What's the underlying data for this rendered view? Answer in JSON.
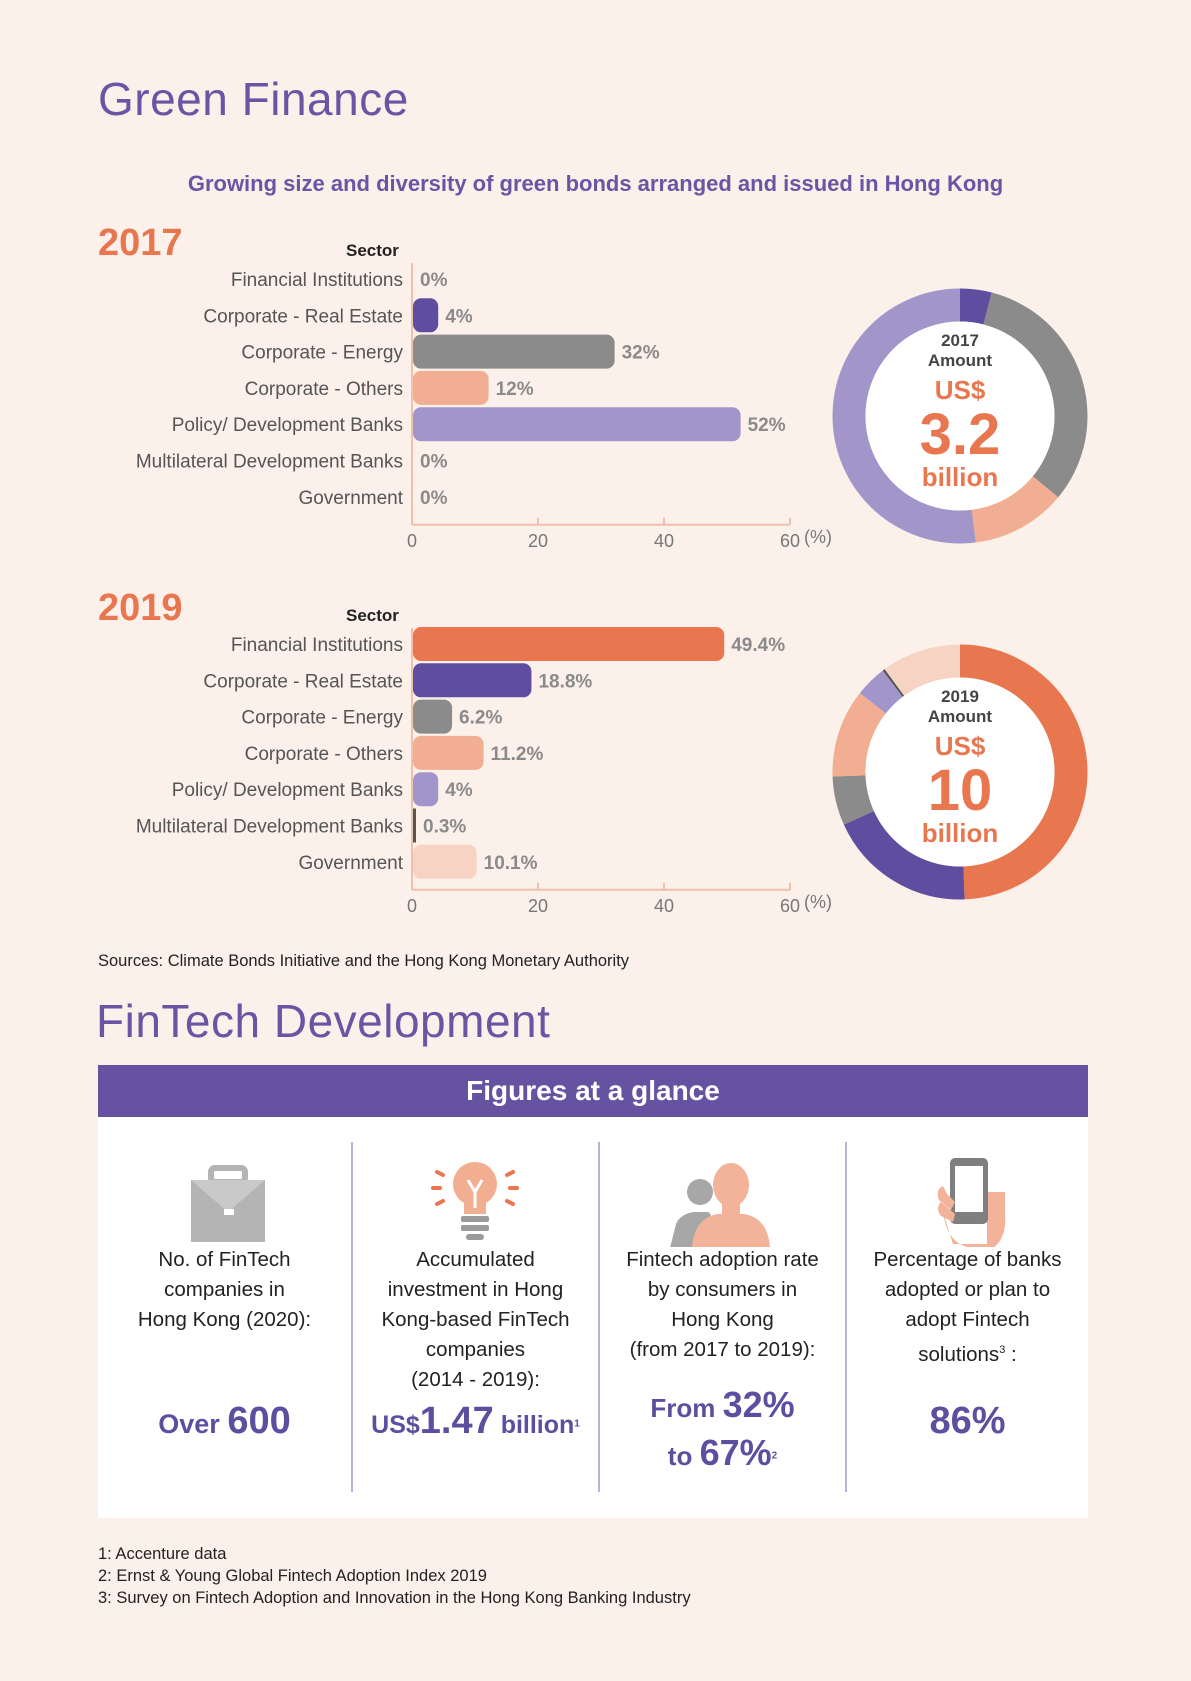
{
  "green": {
    "title": "Green Finance",
    "subtitle": "Growing size and diversity of green bonds arranged and issued in Hong Kong",
    "sources": "Sources: Climate Bonds Initiative and the Hong Kong Monetary Authority"
  },
  "colors": {
    "accent_orange": "#e8764f",
    "purple": "#6a55a4",
    "real_estate": "#5f4ea0",
    "energy": "#8b8b8b",
    "others": "#f1ae92",
    "policy": "#a295c9",
    "multilateral": "#555555",
    "government": "#f7d3c4",
    "axis": "#f0c0aa"
  },
  "chart_data": [
    {
      "type": "bar",
      "year_label": "2017",
      "sector_header": "Sector",
      "categories": [
        "Financial Institutions",
        "Corporate - Real Estate",
        "Corporate - Energy",
        "Corporate - Others",
        "Policy/ Development Banks",
        "Multilateral Development Banks",
        "Government"
      ],
      "values": [
        0,
        4,
        32,
        12,
        52,
        0,
        0
      ],
      "value_labels": [
        "0%",
        "4%",
        "32%",
        "12%",
        "52%",
        "0%",
        "0%"
      ],
      "bar_colors": [
        "#e8764f",
        "#5f4ea0",
        "#8b8b8b",
        "#f1ae92",
        "#a295c9",
        "#555555",
        "#f7d3c4"
      ],
      "xlim": [
        0,
        60
      ],
      "xticks": [
        0,
        20,
        40,
        60
      ],
      "xlabel": "(%)"
    },
    {
      "type": "pie",
      "donut_year": "2017",
      "donut_amount_label": "Amount",
      "donut_currency": "US$",
      "donut_value": "3.2",
      "donut_unit": "billion",
      "values": [
        0,
        4,
        32,
        12,
        52,
        0,
        0
      ],
      "colors": [
        "#e8764f",
        "#5f4ea0",
        "#8b8b8b",
        "#f1ae92",
        "#a295c9",
        "#555555",
        "#f7d3c4"
      ]
    },
    {
      "type": "bar",
      "year_label": "2019",
      "sector_header": "Sector",
      "categories": [
        "Financial Institutions",
        "Corporate - Real Estate",
        "Corporate - Energy",
        "Corporate - Others",
        "Policy/ Development Banks",
        "Multilateral Development Banks",
        "Government"
      ],
      "values": [
        49.4,
        18.8,
        6.2,
        11.2,
        4,
        0.3,
        10.1
      ],
      "value_labels": [
        "49.4%",
        "18.8%",
        "6.2%",
        "11.2%",
        "4%",
        "0.3%",
        "10.1%"
      ],
      "bar_colors": [
        "#e8764f",
        "#5f4ea0",
        "#8b8b8b",
        "#f1ae92",
        "#a295c9",
        "#555555",
        "#f7d3c4"
      ],
      "xlim": [
        0,
        60
      ],
      "xticks": [
        0,
        20,
        40,
        60
      ],
      "xlabel": "(%)"
    },
    {
      "type": "pie",
      "donut_year": "2019",
      "donut_amount_label": "Amount",
      "donut_currency": "US$",
      "donut_value": "10",
      "donut_unit": "billion",
      "values": [
        49.4,
        18.8,
        6.2,
        11.2,
        4,
        0.3,
        10.1
      ],
      "colors": [
        "#e8764f",
        "#5f4ea0",
        "#8b8b8b",
        "#f1ae92",
        "#a295c9",
        "#555555",
        "#f7d3c4"
      ]
    }
  ],
  "fintech": {
    "title": "FinTech Development",
    "banner": "Figures at a glance",
    "cards": [
      {
        "icon": "briefcase-icon",
        "desc": [
          "No. of FinTech",
          "companies in",
          "Hong Kong (2020):"
        ],
        "value_prefix": "Over ",
        "value_main": "600",
        "value_suffix": "",
        "footnote": ""
      },
      {
        "icon": "lightbulb-icon",
        "desc": [
          "Accumulated",
          "investment in Hong",
          "Kong-based FinTech",
          "companies",
          "(2014 - 2019):"
        ],
        "value_prefix": "US$",
        "value_main": "1.47",
        "value_suffix": " billion",
        "footnote": "1"
      },
      {
        "icon": "people-icon",
        "desc": [
          "Fintech adoption rate",
          "by consumers in",
          "Hong Kong",
          "(from 2017 to 2019):"
        ],
        "value_line1_prefix": "From ",
        "value_line1_main": "32%",
        "value_line2_prefix": "to ",
        "value_line2_main": "67%",
        "footnote": "2"
      },
      {
        "icon": "smartphone-icon",
        "desc": [
          "Percentage of banks",
          "adopted or plan to",
          "adopt Fintech",
          "solutions"
        ],
        "desc_sup": "3",
        "desc_tail": " :",
        "value_main": "86%"
      }
    ]
  },
  "footnotes": [
    "1: Accenture data",
    "2: Ernst & Young Global Fintech Adoption Index 2019",
    "3: Survey on Fintech Adoption and Innovation in the Hong Kong Banking Industry"
  ]
}
